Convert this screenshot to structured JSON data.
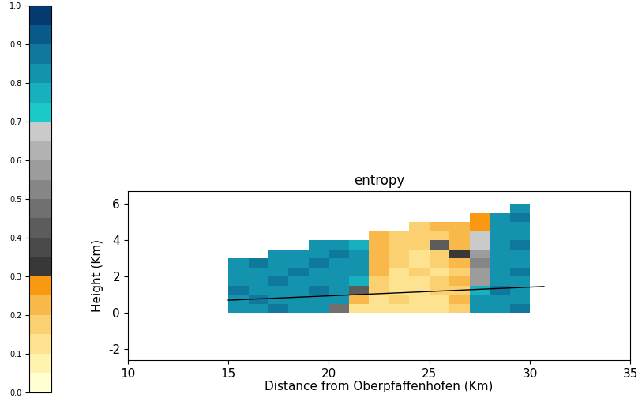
{
  "chart_data": {
    "type": "heatmap",
    "title": "entropy",
    "x_label": "Distance from Oberpfaffenhofen (Km)",
    "y_label": "Height (Km)",
    "x": [
      15.5,
      16.5,
      17.5,
      18.5,
      19.5,
      20.5,
      21.5,
      22.5,
      23.5,
      24.5,
      25.5,
      26.5,
      27.5,
      28.5,
      29.5
    ],
    "y": [
      0.25,
      0.75,
      1.25,
      1.75,
      2.25,
      2.75,
      3.25,
      3.75,
      4.25,
      4.75,
      5.25,
      5.75
    ],
    "values": [
      [
        0.85,
        0.83,
        0.86,
        0.84,
        0.82,
        0.45,
        0.15,
        0.12,
        0.14,
        0.13,
        0.15,
        0.18,
        0.8,
        0.84,
        0.86
      ],
      [
        0.84,
        0.86,
        0.83,
        0.85,
        0.84,
        0.8,
        0.2,
        0.14,
        0.16,
        0.12,
        0.14,
        0.2,
        0.82,
        0.85,
        0.83
      ],
      [
        0.86,
        0.84,
        0.85,
        0.83,
        0.86,
        0.84,
        0.4,
        0.16,
        0.13,
        0.15,
        0.17,
        0.19,
        0.78,
        0.86,
        0.84
      ],
      [
        0.83,
        0.85,
        0.86,
        0.84,
        0.85,
        0.83,
        0.75,
        0.18,
        0.15,
        0.14,
        0.16,
        0.2,
        0.6,
        0.83,
        0.85
      ],
      [
        0.85,
        0.84,
        0.82,
        0.86,
        0.84,
        0.85,
        0.8,
        0.2,
        0.14,
        0.17,
        0.15,
        0.18,
        0.55,
        0.84,
        0.86
      ],
      [
        0.84,
        0.86,
        0.85,
        0.83,
        0.86,
        0.84,
        0.82,
        0.22,
        0.16,
        0.15,
        0.18,
        0.2,
        0.5,
        0.85,
        0.84
      ],
      [
        null,
        null,
        0.84,
        0.85,
        0.83,
        0.86,
        0.8,
        0.21,
        0.18,
        0.14,
        0.16,
        0.35,
        0.6,
        0.84,
        0.85
      ],
      [
        null,
        null,
        null,
        null,
        0.85,
        0.84,
        0.78,
        0.2,
        0.17,
        0.19,
        0.4,
        0.22,
        0.65,
        0.85,
        0.86
      ],
      [
        null,
        null,
        null,
        null,
        null,
        null,
        null,
        0.2,
        0.18,
        0.16,
        0.19,
        0.2,
        0.7,
        0.84,
        0.85
      ],
      [
        null,
        null,
        null,
        null,
        null,
        null,
        null,
        null,
        null,
        0.18,
        0.2,
        0.22,
        0.25,
        0.85,
        0.84
      ],
      [
        null,
        null,
        null,
        null,
        null,
        null,
        null,
        null,
        null,
        null,
        null,
        null,
        0.28,
        0.84,
        0.86
      ],
      [
        null,
        null,
        null,
        null,
        null,
        null,
        null,
        null,
        null,
        null,
        null,
        null,
        null,
        null,
        0.85
      ]
    ],
    "line": {
      "x": [
        15,
        30.7
      ],
      "y": [
        0.7,
        1.45
      ],
      "color": "#000000"
    },
    "xlim": [
      10,
      35
    ],
    "xticks": [
      10,
      15,
      20,
      25,
      30,
      35
    ],
    "ylim": [
      -2.6,
      6.7
    ],
    "yticks": [
      -2,
      0,
      2,
      4,
      6
    ],
    "colorbar": {
      "range": [
        0,
        1
      ],
      "ticks": [
        {
          "value": 0,
          "label": "0.0"
        },
        0.1,
        0.2,
        0.3,
        0.4,
        0.5,
        0.6,
        0.7,
        0.8,
        0.9,
        {
          "value": 1,
          "label": "1.0"
        }
      ]
    }
  }
}
